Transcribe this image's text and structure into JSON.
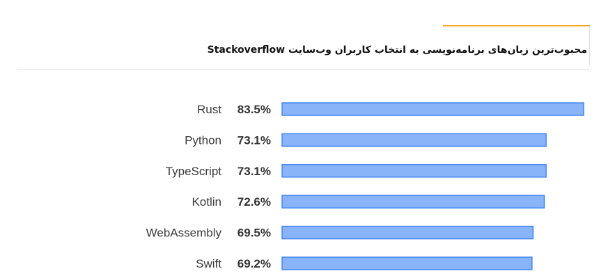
{
  "header": {
    "title": "محبوب‌ترین زبان‌های برنامه‌نویسی به انتخاب کاربران وب‌سایت Stackoverflow",
    "accent_color": "#f5a623"
  },
  "colors": {
    "bar_fill": "#8ab4f8",
    "bar_stroke": "#4285f4"
  },
  "chart_data": {
    "type": "bar",
    "orientation": "horizontal",
    "title": "محبوب‌ترین زبان‌های برنامه‌نویسی به انتخاب کاربران وب‌سایت Stackoverflow",
    "categories": [
      "Rust",
      "Python",
      "TypeScript",
      "Kotlin",
      "WebAssembly",
      "Swift"
    ],
    "values": [
      83.5,
      73.1,
      73.1,
      72.6,
      69.5,
      69.2
    ],
    "value_labels": [
      "83.5%",
      "73.1%",
      "73.1%",
      "72.6%",
      "69.5%",
      "69.2%"
    ],
    "xlim": [
      0,
      83.5
    ],
    "grid": false,
    "legend": "none"
  }
}
